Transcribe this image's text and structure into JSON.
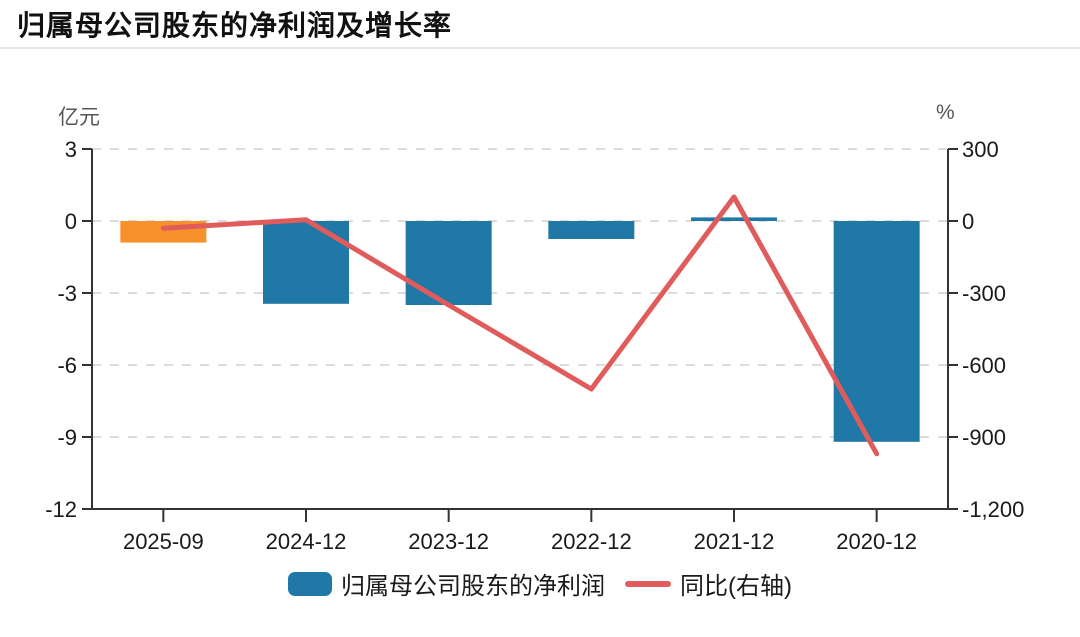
{
  "header": {
    "title": "归属母公司股东的净利润及增长率"
  },
  "chart_data": {
    "type": "bar+line combo, dual axis",
    "categories": [
      "2025-09",
      "2024-12",
      "2023-12",
      "2022-12",
      "2021-12",
      "2020-12"
    ],
    "series": [
      {
        "name": "归属母公司股东的净利润",
        "type": "bar",
        "axis": "left",
        "unit": "亿元",
        "values": [
          -0.9,
          -3.45,
          -3.5,
          -0.75,
          0.15,
          -9.2
        ],
        "bar_colors": [
          "#F7922A",
          "#1F78A5",
          "#1F78A5",
          "#1F78A5",
          "#1F78A5",
          "#1F78A5"
        ]
      },
      {
        "name": "同比(右轴)",
        "type": "line",
        "axis": "right",
        "unit": "%",
        "values": [
          -30,
          5,
          -350,
          -700,
          100,
          -970
        ],
        "color": "#E05C5C"
      }
    ],
    "left_axis": {
      "unit": "亿元",
      "min": -12,
      "max": 3,
      "ticks": [
        {
          "v": 3,
          "label": "3"
        },
        {
          "v": 0,
          "label": "0"
        },
        {
          "v": -3,
          "label": "-3"
        },
        {
          "v": -6,
          "label": "-6"
        },
        {
          "v": -9,
          "label": "-9"
        },
        {
          "v": -12,
          "label": "-12"
        }
      ]
    },
    "right_axis": {
      "unit": "%",
      "min": -1200,
      "max": 300,
      "ticks": [
        {
          "v": 300,
          "label": "300"
        },
        {
          "v": 0,
          "label": "0"
        },
        {
          "v": -300,
          "label": "-300"
        },
        {
          "v": -600,
          "label": "-600"
        },
        {
          "v": -900,
          "label": "-900"
        },
        {
          "v": -1200,
          "label": "-1,200"
        }
      ]
    },
    "legend": [
      {
        "label": "归属母公司股东的净利润",
        "swatch": "bar",
        "color": "#1F78A5"
      },
      {
        "label": "同比(右轴)",
        "swatch": "line",
        "color": "#E05C5C"
      }
    ],
    "grid": "horizontal dashed",
    "colors": {
      "bar": "#1F78A5",
      "bar_highlight": "#F7922A",
      "line": "#E05C5C",
      "grid": "#DCDCDC",
      "axis": "#333333"
    }
  }
}
